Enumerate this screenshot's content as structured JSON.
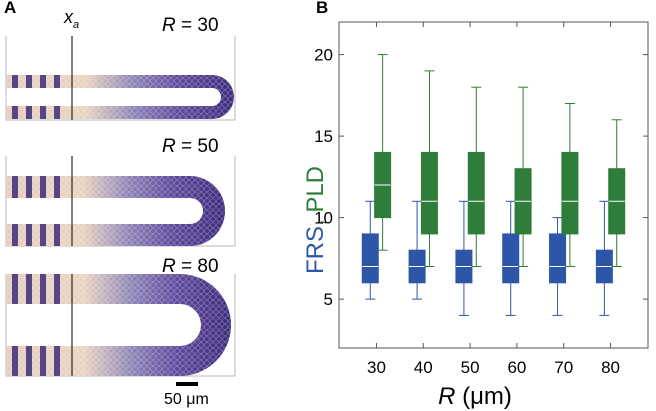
{
  "panel_a": {
    "letter": "A",
    "marker_label": "x",
    "marker_subscript": "a",
    "subpanels": [
      {
        "r_symbol": "R",
        "r_text": " = 30"
      },
      {
        "r_symbol": "R",
        "r_text": " = 50"
      },
      {
        "r_symbol": "R",
        "r_text": " = 80"
      }
    ],
    "scalebar_label": "50 μm"
  },
  "panel_b": {
    "letter": "B"
  },
  "chart_data": {
    "type": "box",
    "x": [
      30,
      40,
      50,
      60,
      70,
      80
    ],
    "xlabel_symbol": "R",
    "xlabel_unit": " (μm)",
    "ylabel_parts": [
      {
        "text": "FRS",
        "color": "#2E56A8"
      },
      {
        "text": ", ",
        "color": "#333333"
      },
      {
        "text": "PLD",
        "color": "#2E7D3A"
      }
    ],
    "xlim": [
      22,
      88
    ],
    "ylim": [
      2,
      22
    ],
    "yticks": [
      5,
      10,
      15,
      20
    ],
    "xticks": [
      30,
      40,
      50,
      60,
      70,
      80
    ],
    "series": [
      {
        "name": "FRS",
        "color": "#2E56A8",
        "boxes": [
          {
            "x": 30,
            "min": 5,
            "q1": 6,
            "median": 7,
            "q3": 9,
            "max": 11
          },
          {
            "x": 40,
            "min": 5,
            "q1": 6,
            "median": 7,
            "q3": 8,
            "max": 11
          },
          {
            "x": 50,
            "min": 4,
            "q1": 6,
            "median": 7,
            "q3": 8,
            "max": 11
          },
          {
            "x": 60,
            "min": 4,
            "q1": 6,
            "median": 7,
            "q3": 9,
            "max": 11
          },
          {
            "x": 70,
            "min": 4,
            "q1": 6,
            "median": 7,
            "q3": 9,
            "max": 10
          },
          {
            "x": 80,
            "min": 4,
            "q1": 6,
            "median": 7,
            "q3": 8,
            "max": 11
          }
        ]
      },
      {
        "name": "PLD",
        "color": "#2E7D3A",
        "boxes": [
          {
            "x": 30,
            "min": 8,
            "q1": 10,
            "median": 12,
            "q3": 14,
            "max": 20
          },
          {
            "x": 40,
            "min": 7,
            "q1": 9,
            "median": 11,
            "q3": 14,
            "max": 19
          },
          {
            "x": 50,
            "min": 7,
            "q1": 9,
            "median": 11,
            "q3": 14,
            "max": 18
          },
          {
            "x": 60,
            "min": 7,
            "q1": 9,
            "median": 11,
            "q3": 13,
            "max": 18
          },
          {
            "x": 70,
            "min": 7,
            "q1": 9,
            "median": 11,
            "q3": 14,
            "max": 17
          },
          {
            "x": 80,
            "min": 7,
            "q1": 9,
            "median": 11,
            "q3": 13,
            "max": 16
          }
        ]
      }
    ]
  }
}
